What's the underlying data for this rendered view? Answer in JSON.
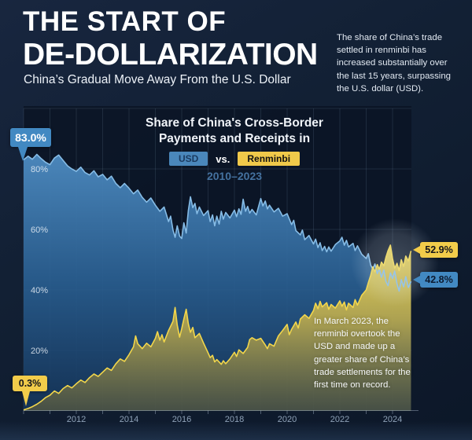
{
  "header": {
    "title_line1": "THE START OF",
    "title_line2": "DE-DOLLARIZATION",
    "subtitle": "China’s Gradual Move Away From the U.S. Dollar",
    "intro": "The share of China’s trade settled in renminbi has increased substantially over the last 15 years, surpassing the U.S. dollar (USD)."
  },
  "chart": {
    "title_line1": "Share of China's Cross-Border",
    "title_line2": "Payments and Receipts in",
    "usd_badge": "USD",
    "vs_label": "vs.",
    "rmb_badge": "Renminbi",
    "period": "2010–2023",
    "annotation": "In March 2023, the renminbi overtook the USD and made up a greater share of China’s trade settlements for the first time on record.",
    "callouts": {
      "usd_start": "83.0%",
      "rmb_start": "0.3%",
      "rmb_end": "52.9%",
      "usd_end": "42.8%"
    }
  },
  "colors": {
    "usd_badge_bg": "#4a87bb",
    "rmb_badge_bg": "#f0c94a",
    "usd_line": "#86bce6",
    "rmb_line": "#f2d64b",
    "background": "#122034"
  },
  "chart_data": {
    "type": "area",
    "title": "Share of China's Cross-Border Payments and Receipts in USD vs. Renminbi",
    "period_label": "2010–2023",
    "xlim": [
      2010,
      2024.7
    ],
    "ylim": [
      0,
      100
    ],
    "grid": true,
    "x_ticks": [
      2012,
      2014,
      2016,
      2018,
      2020,
      2022,
      2024
    ],
    "y_grid": [
      20,
      40,
      60,
      80,
      100
    ],
    "y_ticks": [
      {
        "v": 80,
        "label": "80%"
      },
      {
        "v": 60,
        "label": "60%"
      },
      {
        "v": 40,
        "label": "40%"
      },
      {
        "v": 20,
        "label": "20%"
      }
    ],
    "legend": [
      "USD",
      "Renminbi"
    ],
    "series": [
      {
        "name": "USD",
        "start_label": "83.0%",
        "end_label": "42.8%",
        "points": [
          [
            2010.0,
            83.0
          ],
          [
            2010.17,
            84.2
          ],
          [
            2010.33,
            83.2
          ],
          [
            2010.5,
            84.8
          ],
          [
            2010.67,
            83.4
          ],
          [
            2010.83,
            82.2
          ],
          [
            2011.0,
            81.4
          ],
          [
            2011.17,
            83.6
          ],
          [
            2011.33,
            84.6
          ],
          [
            2011.5,
            82.8
          ],
          [
            2011.67,
            81.0
          ],
          [
            2011.83,
            80.0
          ],
          [
            2012.0,
            79.2
          ],
          [
            2012.17,
            80.6
          ],
          [
            2012.33,
            78.8
          ],
          [
            2012.5,
            78.0
          ],
          [
            2012.67,
            79.4
          ],
          [
            2012.83,
            77.4
          ],
          [
            2013.0,
            78.2
          ],
          [
            2013.17,
            76.4
          ],
          [
            2013.33,
            77.6
          ],
          [
            2013.5,
            75.2
          ],
          [
            2013.67,
            73.8
          ],
          [
            2013.83,
            75.2
          ],
          [
            2014.0,
            73.6
          ],
          [
            2014.17,
            71.8
          ],
          [
            2014.33,
            73.0
          ],
          [
            2014.5,
            70.6
          ],
          [
            2014.67,
            69.0
          ],
          [
            2014.83,
            70.4
          ],
          [
            2015.0,
            68.0
          ],
          [
            2015.17,
            66.0
          ],
          [
            2015.33,
            67.4
          ],
          [
            2015.5,
            62.6
          ],
          [
            2015.58,
            64.4
          ],
          [
            2015.67,
            59.8
          ],
          [
            2015.75,
            57.4
          ],
          [
            2015.83,
            61.2
          ],
          [
            2015.92,
            57.8
          ],
          [
            2016.0,
            57.0
          ],
          [
            2016.08,
            62.2
          ],
          [
            2016.17,
            58.8
          ],
          [
            2016.25,
            66.2
          ],
          [
            2016.33,
            70.8
          ],
          [
            2016.42,
            67.2
          ],
          [
            2016.5,
            68.6
          ],
          [
            2016.58,
            65.2
          ],
          [
            2016.67,
            67.4
          ],
          [
            2016.83,
            64.6
          ],
          [
            2017.0,
            66.2
          ],
          [
            2017.08,
            62.6
          ],
          [
            2017.17,
            64.8
          ],
          [
            2017.25,
            61.2
          ],
          [
            2017.33,
            64.4
          ],
          [
            2017.42,
            61.8
          ],
          [
            2017.5,
            66.0
          ],
          [
            2017.58,
            63.4
          ],
          [
            2017.67,
            65.6
          ],
          [
            2017.83,
            63.8
          ],
          [
            2018.0,
            66.4
          ],
          [
            2018.08,
            64.2
          ],
          [
            2018.17,
            66.8
          ],
          [
            2018.25,
            65.0
          ],
          [
            2018.33,
            70.0
          ],
          [
            2018.42,
            66.0
          ],
          [
            2018.5,
            67.6
          ],
          [
            2018.58,
            65.4
          ],
          [
            2018.67,
            66.6
          ],
          [
            2018.83,
            64.8
          ],
          [
            2019.0,
            70.2
          ],
          [
            2019.08,
            67.8
          ],
          [
            2019.17,
            69.4
          ],
          [
            2019.25,
            66.8
          ],
          [
            2019.33,
            68.0
          ],
          [
            2019.5,
            65.8
          ],
          [
            2019.67,
            67.0
          ],
          [
            2019.83,
            64.4
          ],
          [
            2020.0,
            65.2
          ],
          [
            2020.17,
            61.6
          ],
          [
            2020.25,
            63.0
          ],
          [
            2020.33,
            59.6
          ],
          [
            2020.5,
            58.2
          ],
          [
            2020.58,
            59.8
          ],
          [
            2020.67,
            56.6
          ],
          [
            2020.83,
            58.0
          ],
          [
            2021.0,
            55.2
          ],
          [
            2021.08,
            56.8
          ],
          [
            2021.17,
            54.0
          ],
          [
            2021.25,
            55.6
          ],
          [
            2021.33,
            53.0
          ],
          [
            2021.42,
            54.4
          ],
          [
            2021.5,
            52.6
          ],
          [
            2021.58,
            54.2
          ],
          [
            2021.67,
            52.8
          ],
          [
            2021.83,
            55.0
          ],
          [
            2022.0,
            56.2
          ],
          [
            2022.08,
            57.4
          ],
          [
            2022.17,
            54.8
          ],
          [
            2022.25,
            56.4
          ],
          [
            2022.33,
            54.2
          ],
          [
            2022.5,
            55.4
          ],
          [
            2022.58,
            53.0
          ],
          [
            2022.67,
            54.6
          ],
          [
            2022.83,
            51.8
          ],
          [
            2023.0,
            50.4
          ],
          [
            2023.08,
            52.0
          ],
          [
            2023.17,
            48.2
          ],
          [
            2023.25,
            46.8
          ],
          [
            2023.33,
            48.6
          ],
          [
            2023.42,
            45.4
          ],
          [
            2023.5,
            47.0
          ],
          [
            2023.58,
            44.2
          ],
          [
            2023.67,
            46.6
          ],
          [
            2023.75,
            42.8
          ],
          [
            2023.83,
            41.4
          ],
          [
            2023.92,
            45.6
          ],
          [
            2024.0,
            43.8
          ],
          [
            2024.08,
            46.2
          ],
          [
            2024.17,
            42.0
          ],
          [
            2024.25,
            39.6
          ],
          [
            2024.33,
            43.4
          ],
          [
            2024.42,
            41.0
          ],
          [
            2024.5,
            44.4
          ],
          [
            2024.6,
            40.8
          ],
          [
            2024.7,
            42.8
          ]
        ]
      },
      {
        "name": "Renminbi",
        "start_label": "0.3%",
        "end_label": "52.9%",
        "points": [
          [
            2010.0,
            0.3
          ],
          [
            2010.17,
            0.8
          ],
          [
            2010.33,
            1.4
          ],
          [
            2010.5,
            2.2
          ],
          [
            2010.67,
            3.2
          ],
          [
            2010.83,
            4.4
          ],
          [
            2011.0,
            5.2
          ],
          [
            2011.17,
            6.6
          ],
          [
            2011.33,
            5.8
          ],
          [
            2011.5,
            7.4
          ],
          [
            2011.67,
            8.4
          ],
          [
            2011.83,
            7.6
          ],
          [
            2012.0,
            9.0
          ],
          [
            2012.17,
            10.2
          ],
          [
            2012.33,
            9.4
          ],
          [
            2012.5,
            11.0
          ],
          [
            2012.67,
            12.2
          ],
          [
            2012.83,
            11.4
          ],
          [
            2013.0,
            12.8
          ],
          [
            2013.17,
            14.2
          ],
          [
            2013.33,
            13.4
          ],
          [
            2013.5,
            15.6
          ],
          [
            2013.67,
            17.2
          ],
          [
            2013.83,
            16.4
          ],
          [
            2014.0,
            18.6
          ],
          [
            2014.17,
            21.2
          ],
          [
            2014.25,
            24.8
          ],
          [
            2014.33,
            22.2
          ],
          [
            2014.5,
            20.6
          ],
          [
            2014.67,
            22.4
          ],
          [
            2014.83,
            21.2
          ],
          [
            2015.0,
            24.0
          ],
          [
            2015.08,
            26.2
          ],
          [
            2015.17,
            23.4
          ],
          [
            2015.25,
            25.2
          ],
          [
            2015.33,
            22.8
          ],
          [
            2015.5,
            26.6
          ],
          [
            2015.67,
            29.6
          ],
          [
            2015.75,
            34.2
          ],
          [
            2015.83,
            28.4
          ],
          [
            2015.92,
            24.4
          ],
          [
            2016.0,
            27.2
          ],
          [
            2016.08,
            30.4
          ],
          [
            2016.17,
            33.6
          ],
          [
            2016.25,
            28.8
          ],
          [
            2016.33,
            26.0
          ],
          [
            2016.42,
            27.6
          ],
          [
            2016.5,
            24.2
          ],
          [
            2016.67,
            25.6
          ],
          [
            2016.83,
            22.4
          ],
          [
            2017.0,
            19.2
          ],
          [
            2017.08,
            17.6
          ],
          [
            2017.17,
            18.4
          ],
          [
            2017.25,
            16.2
          ],
          [
            2017.33,
            17.0
          ],
          [
            2017.5,
            15.4
          ],
          [
            2017.58,
            16.6
          ],
          [
            2017.67,
            15.6
          ],
          [
            2017.83,
            17.2
          ],
          [
            2018.0,
            19.4
          ],
          [
            2018.08,
            18.0
          ],
          [
            2018.17,
            20.2
          ],
          [
            2018.33,
            19.0
          ],
          [
            2018.5,
            21.0
          ],
          [
            2018.58,
            23.6
          ],
          [
            2018.67,
            24.2
          ],
          [
            2018.83,
            23.4
          ],
          [
            2019.0,
            24.0
          ],
          [
            2019.17,
            21.8
          ],
          [
            2019.25,
            20.6
          ],
          [
            2019.33,
            22.2
          ],
          [
            2019.5,
            21.4
          ],
          [
            2019.58,
            23.0
          ],
          [
            2019.67,
            24.8
          ],
          [
            2019.83,
            26.6
          ],
          [
            2020.0,
            28.6
          ],
          [
            2020.08,
            25.2
          ],
          [
            2020.17,
            27.0
          ],
          [
            2020.33,
            29.4
          ],
          [
            2020.42,
            27.4
          ],
          [
            2020.5,
            30.4
          ],
          [
            2020.67,
            31.8
          ],
          [
            2020.83,
            30.6
          ],
          [
            2021.0,
            33.2
          ],
          [
            2021.08,
            35.6
          ],
          [
            2021.17,
            33.8
          ],
          [
            2021.25,
            36.2
          ],
          [
            2021.33,
            34.4
          ],
          [
            2021.5,
            35.8
          ],
          [
            2021.58,
            33.6
          ],
          [
            2021.67,
            35.2
          ],
          [
            2021.83,
            34.0
          ],
          [
            2022.0,
            36.4
          ],
          [
            2022.08,
            34.6
          ],
          [
            2022.17,
            36.0
          ],
          [
            2022.25,
            33.4
          ],
          [
            2022.33,
            35.6
          ],
          [
            2022.5,
            34.2
          ],
          [
            2022.58,
            36.8
          ],
          [
            2022.67,
            35.0
          ],
          [
            2022.83,
            38.2
          ],
          [
            2023.0,
            40.0
          ],
          [
            2023.08,
            42.4
          ],
          [
            2023.17,
            44.8
          ],
          [
            2023.25,
            47.6
          ],
          [
            2023.33,
            46.0
          ],
          [
            2023.42,
            48.4
          ],
          [
            2023.5,
            46.8
          ],
          [
            2023.58,
            49.2
          ],
          [
            2023.67,
            48.0
          ],
          [
            2023.75,
            50.8
          ],
          [
            2023.83,
            53.0
          ],
          [
            2023.92,
            54.8
          ],
          [
            2024.0,
            50.4
          ],
          [
            2024.08,
            47.2
          ],
          [
            2024.17,
            48.8
          ],
          [
            2024.25,
            46.4
          ],
          [
            2024.33,
            50.0
          ],
          [
            2024.42,
            47.8
          ],
          [
            2024.5,
            51.2
          ],
          [
            2024.6,
            49.6
          ],
          [
            2024.7,
            52.9
          ]
        ]
      }
    ]
  }
}
